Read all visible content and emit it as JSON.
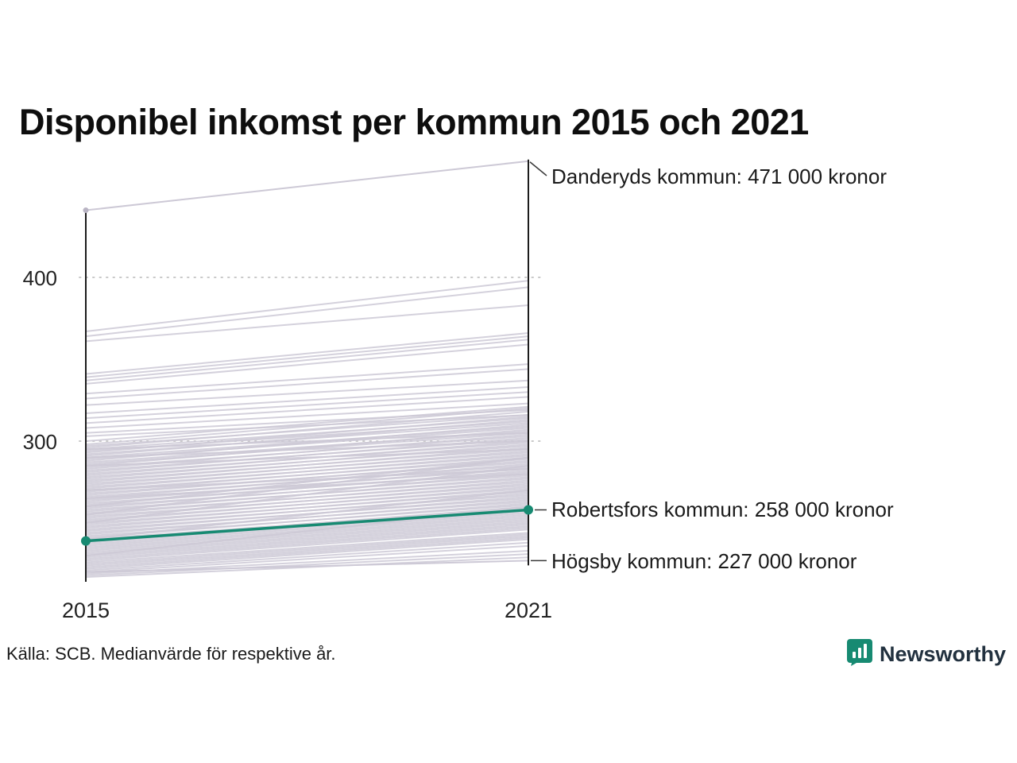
{
  "chart_data": {
    "type": "line",
    "subtype": "slope",
    "title": "Disponibel inkomst per kommun 2015 och 2021",
    "x_categories": [
      "2015",
      "2021"
    ],
    "y_tick_labels": [
      "300",
      "400"
    ],
    "y_gridlines": [
      300,
      400
    ],
    "y_domain": [
      210,
      480
    ],
    "unit": "tusen kronor",
    "highlighted": {
      "name": "Robertsfors kommun",
      "values": [
        239,
        258
      ],
      "label": "Robertsfors kommun: 258 000 kronor"
    },
    "annotations": [
      {
        "name": "Danderyds kommun",
        "values": [
          441,
          471
        ],
        "label": "Danderyds kommun: 471 000 kronor"
      },
      {
        "name": "Högsby kommun",
        "values": [
          220,
          227
        ],
        "label": "Högsby kommun: 227 000 kronor"
      }
    ],
    "background_lines": [
      [
        367,
        398
      ],
      [
        364,
        394
      ],
      [
        361,
        383
      ],
      [
        341,
        366
      ],
      [
        339,
        364
      ],
      [
        337,
        362
      ],
      [
        335,
        359
      ],
      [
        329,
        347
      ],
      [
        326,
        344
      ],
      [
        322,
        337
      ],
      [
        317,
        333
      ],
      [
        314,
        330
      ],
      [
        311,
        327
      ],
      [
        308,
        323
      ],
      [
        305,
        319
      ],
      [
        303,
        316
      ],
      [
        300,
        321
      ],
      [
        298,
        320
      ],
      [
        297,
        316
      ],
      [
        296,
        318
      ],
      [
        295,
        314
      ],
      [
        294,
        312
      ],
      [
        293,
        315
      ],
      [
        292,
        311
      ],
      [
        291,
        313
      ],
      [
        290,
        309
      ],
      [
        289,
        308
      ],
      [
        288,
        310
      ],
      [
        287,
        306
      ],
      [
        286,
        305
      ],
      [
        285,
        307
      ],
      [
        284,
        303
      ],
      [
        283,
        304
      ],
      [
        282,
        301
      ],
      [
        281,
        302
      ],
      [
        280,
        299
      ],
      [
        279,
        300
      ],
      [
        278,
        297
      ],
      [
        277,
        298
      ],
      [
        276,
        295
      ],
      [
        275,
        296
      ],
      [
        274,
        293
      ],
      [
        273,
        294
      ],
      [
        272,
        291
      ],
      [
        271,
        292
      ],
      [
        270,
        289
      ],
      [
        269,
        290
      ],
      [
        268,
        287
      ],
      [
        267,
        288
      ],
      [
        266,
        285
      ],
      [
        265,
        286
      ],
      [
        264,
        283
      ],
      [
        263,
        284
      ],
      [
        262,
        281
      ],
      [
        261,
        282
      ],
      [
        260,
        279
      ],
      [
        259,
        280
      ],
      [
        258,
        277
      ],
      [
        257,
        278
      ],
      [
        256,
        275
      ],
      [
        255,
        276
      ],
      [
        254,
        273
      ],
      [
        253,
        274
      ],
      [
        252,
        271
      ],
      [
        251,
        272
      ],
      [
        250,
        269
      ],
      [
        249,
        270
      ],
      [
        248,
        267
      ],
      [
        247,
        268
      ],
      [
        246,
        265
      ],
      [
        245,
        266
      ],
      [
        244,
        263
      ],
      [
        243,
        264
      ],
      [
        242,
        261
      ],
      [
        241,
        262
      ],
      [
        240,
        259
      ],
      [
        239,
        260
      ],
      [
        238,
        257
      ],
      [
        237,
        256
      ],
      [
        236,
        255
      ],
      [
        235,
        254
      ],
      [
        234,
        253
      ],
      [
        233,
        252
      ],
      [
        232,
        251
      ],
      [
        231,
        250
      ],
      [
        230,
        249
      ],
      [
        229,
        248
      ],
      [
        228,
        247
      ],
      [
        227,
        246
      ],
      [
        226,
        244
      ],
      [
        225,
        243
      ],
      [
        224,
        242
      ],
      [
        223,
        241
      ],
      [
        222,
        240
      ],
      [
        221,
        238
      ],
      [
        220,
        236
      ],
      [
        219,
        233
      ],
      [
        218,
        231
      ],
      [
        217,
        229
      ],
      [
        250,
        285
      ],
      [
        270,
        283
      ],
      [
        290,
        300
      ],
      [
        260,
        290
      ],
      [
        240,
        270
      ],
      [
        285,
        295
      ],
      [
        230,
        260
      ],
      [
        295,
        305
      ],
      [
        255,
        290
      ],
      [
        265,
        280
      ]
    ],
    "legend": "none",
    "grid": "dotted-horizontal"
  },
  "colors": {
    "highlight": "#178a72",
    "line_gray": "#cdc9d6",
    "axis": "#1c1c1c",
    "gridline": "#c9c9c9",
    "connector": "#3a3a3a",
    "brand_teal": "#178a72"
  },
  "footer": {
    "source": "Källa: SCB. Medianvärde för respektive år.",
    "brand": "Newsworthy"
  }
}
